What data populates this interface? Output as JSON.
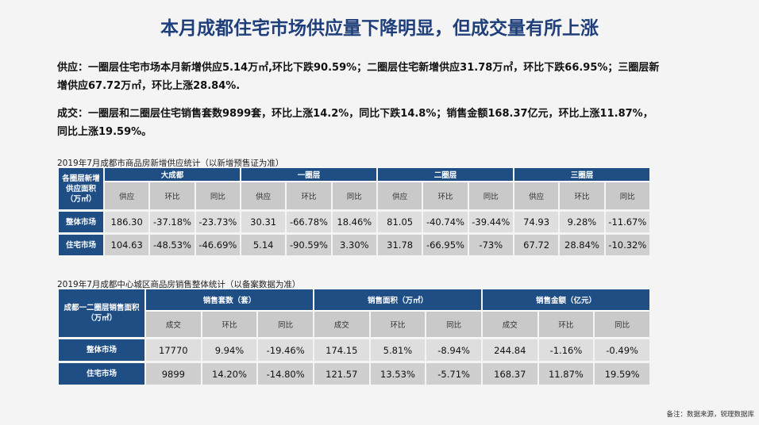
{
  "title": "本月成都住宅市场供应量下降明显，但成交量有所上涨",
  "supply_text": "供应：一圈层住宅市场本月新增供应5.14万㎡,环比下跌90.59%；二圈层住宅新增供应31.78万㎡，环比下跌66.95%；三圈层新增供应67.72万㎡，环比上涨28.84%.",
  "deal_text": "成交：一圈层和二圈层住宅销售套数9899套，环比上涨14.2%，同比下跌14.8%；销售金额168.37亿元，环比上涨11.87%，同比上涨19.59%。",
  "table1": {
    "caption": "2019年7月成都市商品房新增供应统计（以新增预售证为准）",
    "corner": "各圈层新增供应面积（万㎡）",
    "groups": [
      "大成都",
      "一圈层",
      "二圈层",
      "三圈层"
    ],
    "subheaders": [
      "供应",
      "环比",
      "同比",
      "供应",
      "环比",
      "同比",
      "供应",
      "环比",
      "同比",
      "供应",
      "环比",
      "同比"
    ],
    "rows": [
      {
        "label": "整体市场",
        "values": [
          "186.30",
          "-37.18%",
          "-23.73%",
          "30.31",
          "-66.78%",
          "18.46%",
          "81.05",
          "-40.74%",
          "-39.44%",
          "74.93",
          "9.28%",
          "-11.67%"
        ]
      },
      {
        "label": "住宅市场",
        "values": [
          "104.63",
          "-48.53%",
          "-46.69%",
          "5.14",
          "-90.59%",
          "3.30%",
          "31.78",
          "-66.95%",
          "-73%",
          "67.72",
          "28.84%",
          "-10.32%"
        ]
      }
    ]
  },
  "table2": {
    "caption": "2019年7月成都中心城区商品房销售整体统计（以备案数据为准）",
    "corner": "成都一二圈层销售面积（万㎡）",
    "groups": [
      "销售套数（套）",
      "销售面积（万㎡）",
      "销售金额（亿元）"
    ],
    "subheaders": [
      "成交",
      "环比",
      "同比",
      "成交",
      "环比",
      "同比",
      "成交",
      "环比",
      "同比"
    ],
    "rows": [
      {
        "label": "整体市场",
        "values": [
          "17770",
          "9.94%",
          "-19.46%",
          "174.15",
          "5.81%",
          "-8.94%",
          "244.84",
          "-1.16%",
          "-0.49%"
        ]
      },
      {
        "label": "住宅市场",
        "values": [
          "9899",
          "14.20%",
          "-14.80%",
          "121.57",
          "13.53%",
          "-5.71%",
          "168.37",
          "11.87%",
          "19.59%"
        ]
      }
    ]
  },
  "footer": "备注：数据来源，锐理数据库",
  "colors": {
    "title": "#1f3f7a",
    "header_bg": "#1f4e85"
  }
}
